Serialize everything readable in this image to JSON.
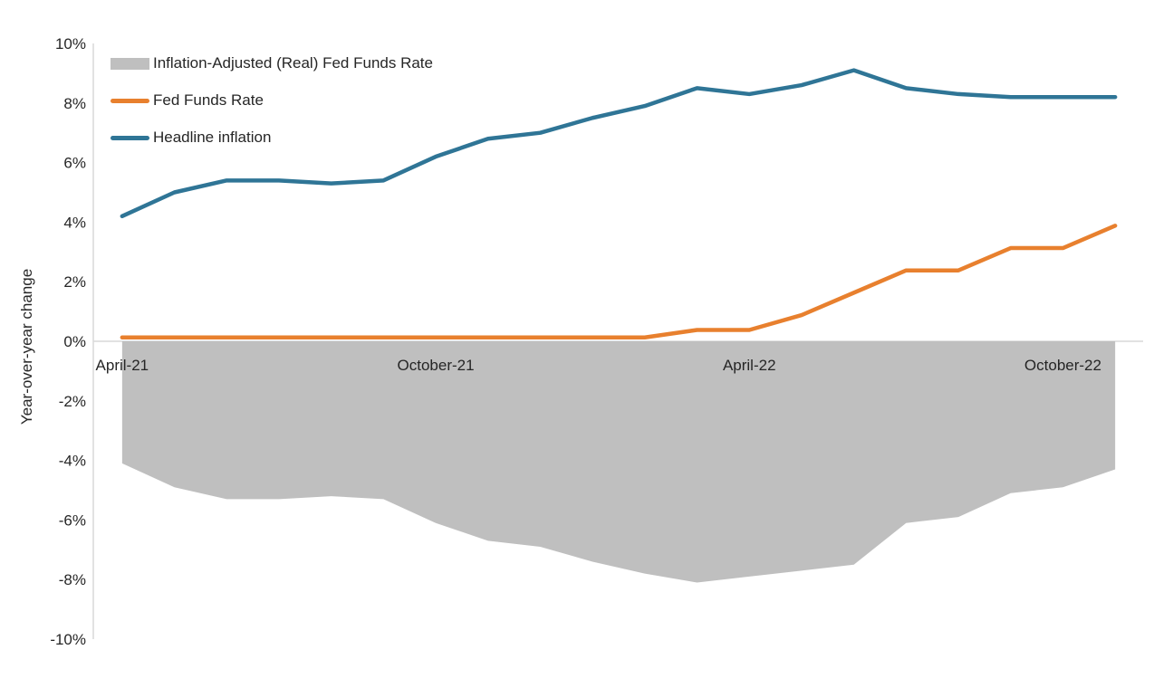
{
  "chart_data": {
    "type": "line",
    "title": "",
    "ylabel": "Year-over-year change",
    "xlabel": "",
    "grid": false,
    "legend_position": "top-left",
    "ylim": [
      -10,
      10
    ],
    "ytick_labels": [
      "10%",
      "8%",
      "6%",
      "4%",
      "2%",
      "0%",
      "-2%",
      "-4%",
      "-6%",
      "-8%",
      "-10%"
    ],
    "ytick_values": [
      10,
      8,
      6,
      4,
      2,
      0,
      -2,
      -4,
      -6,
      -8,
      -10
    ],
    "x": [
      "April-21",
      "May-21",
      "June-21",
      "July-21",
      "August-21",
      "September-21",
      "October-21",
      "November-21",
      "December-21",
      "January-22",
      "February-22",
      "March-22",
      "April-22",
      "May-22",
      "June-22",
      "July-22",
      "August-22",
      "September-22",
      "October-22",
      "November-22"
    ],
    "x_ticks": [
      {
        "label": "April-21",
        "index": 0
      },
      {
        "label": "October-21",
        "index": 6
      },
      {
        "label": "April-22",
        "index": 12
      },
      {
        "label": "October-22",
        "index": 18
      }
    ],
    "series": [
      {
        "name": "Inflation-Adjusted (Real) Fed Funds Rate",
        "type": "area",
        "color": "#BFBFBF",
        "values": [
          -4.1,
          -4.9,
          -5.3,
          -5.3,
          -5.2,
          -5.3,
          -6.1,
          -6.7,
          -6.9,
          -7.4,
          -7.8,
          -8.1,
          -7.9,
          -7.7,
          -7.5,
          -6.1,
          -5.9,
          -5.1,
          -4.9,
          -4.3
        ]
      },
      {
        "name": "Fed Funds Rate",
        "type": "line",
        "color": "#E8802E",
        "values": [
          0.13,
          0.13,
          0.13,
          0.13,
          0.13,
          0.13,
          0.13,
          0.13,
          0.13,
          0.13,
          0.13,
          0.38,
          0.38,
          0.88,
          1.63,
          2.38,
          2.38,
          3.13,
          3.13,
          3.88
        ]
      },
      {
        "name": "Headline inflation",
        "type": "line",
        "color": "#2F7596",
        "values": [
          4.2,
          5.0,
          5.4,
          5.4,
          5.3,
          5.4,
          6.2,
          6.8,
          7.0,
          7.5,
          7.9,
          8.5,
          8.3,
          8.6,
          9.1,
          8.5,
          8.3,
          8.2,
          8.2,
          8.2
        ]
      }
    ],
    "colors": {
      "text": "#262626",
      "axis": "#D9D9D9",
      "background": "#FFFFFF"
    }
  }
}
